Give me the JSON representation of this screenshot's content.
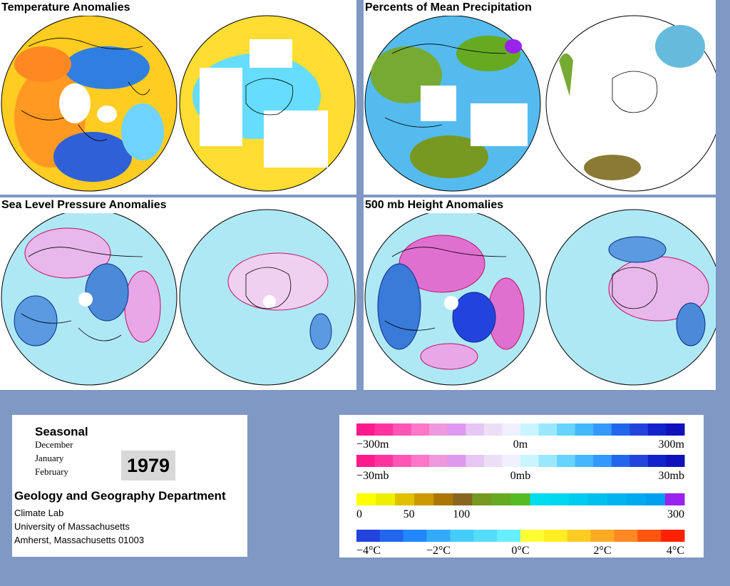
{
  "panels": {
    "temperature": {
      "title": "Temperature Anomalies"
    },
    "precipitation": {
      "title": "Percents of Mean Precipitation"
    },
    "slp": {
      "title": "Sea Level Pressure Anomalies"
    },
    "height": {
      "title": "500 mb Height Anomalies"
    }
  },
  "info": {
    "season": "Seasonal",
    "months": [
      "December",
      "January",
      "February"
    ],
    "year": "1979",
    "department": "Geology and Geography Department",
    "lines": [
      "Climate Lab",
      "University of Massachusetts",
      "Amherst, Massachusetts 01003"
    ]
  },
  "legends": [
    {
      "name": "height-scale",
      "labels": [
        "−300m",
        "0m",
        "300m"
      ],
      "colors": [
        "#ff1a8c",
        "#ff33a0",
        "#ff55b5",
        "#ff77c6",
        "#ee99dd",
        "#dd99ee",
        "#e6c6f2",
        "#ecdff5",
        "#f0f0ff",
        "#c9f5ff",
        "#99e8ff",
        "#66d4ff",
        "#44b8ff",
        "#3399ff",
        "#2266ee",
        "#2244dd",
        "#1122cc",
        "#1111bb"
      ]
    },
    {
      "name": "pressure-scale",
      "labels": [
        "−30mb",
        "0mb",
        "30mb"
      ],
      "colors": [
        "#ff1a8c",
        "#ff33a0",
        "#ff55b5",
        "#ff77c6",
        "#ee99dd",
        "#dd99ee",
        "#e6c6f2",
        "#ecdff5",
        "#f0f0ff",
        "#c9f5ff",
        "#99e8ff",
        "#66d4ff",
        "#44b8ff",
        "#3399ff",
        "#2266ee",
        "#2244dd",
        "#1122cc",
        "#1111bb"
      ]
    },
    {
      "name": "precip-scale",
      "labels": [
        "0",
        "50",
        "100",
        "300"
      ],
      "colors": [
        "#ffff00",
        "#eeee00",
        "#e0c000",
        "#cc9900",
        "#aa7700",
        "#886622",
        "#779922",
        "#66aa22",
        "#55bb22",
        "#00ddee",
        "#00d8f0",
        "#00ccf0",
        "#00c0f0",
        "#00b4f0",
        "#00aaf0",
        "#00a0f0",
        "#9922ee"
      ]
    },
    {
      "name": "temperature-scale",
      "labels": [
        "−4°C",
        "−2°C",
        "0°C",
        "2°C",
        "4°C"
      ],
      "colors": [
        "#2244dd",
        "#2266ee",
        "#2288ff",
        "#33aaff",
        "#44ccff",
        "#55ddff",
        "#66eeff",
        "#ffff33",
        "#ffee22",
        "#ffcc22",
        "#ffaa22",
        "#ff8822",
        "#ff5511",
        "#ff2200"
      ]
    }
  ],
  "colors": {
    "background": "#7f98c4",
    "ocean_blue": "#aee8f5",
    "positive_anomaly": "#e8a8e8",
    "negative_anomaly": "#4a8ad8",
    "warm": "#ffcc33",
    "cool": "#33ccff"
  }
}
